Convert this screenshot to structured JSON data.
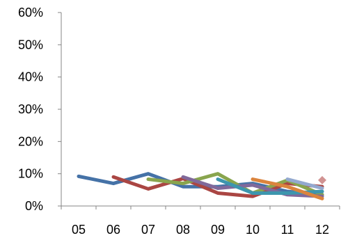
{
  "chart_data": {
    "type": "line",
    "title": "",
    "xlabel": "",
    "ylabel": "",
    "categories": [
      "05",
      "06",
      "07",
      "08",
      "09",
      "10",
      "11",
      "12"
    ],
    "y_tick_labels": [
      "0%",
      "10%",
      "20%",
      "30%",
      "40%",
      "50%",
      "60%"
    ],
    "ylim": [
      0,
      60
    ],
    "grid": false,
    "legend": "none",
    "series": [
      {
        "color": "#4572A7",
        "points": [
          {
            "x": 0,
            "y": 9.2
          },
          {
            "x": 1,
            "y": 7.0
          },
          {
            "x": 2,
            "y": 10.0
          },
          {
            "x": 3,
            "y": 6.0
          },
          {
            "x": 4,
            "y": 6.0
          },
          {
            "x": 5,
            "y": 7.0
          },
          {
            "x": 6,
            "y": 4.5
          },
          {
            "x": 7,
            "y": 3.5
          }
        ]
      },
      {
        "color": "#AA4643",
        "points": [
          {
            "x": 1,
            "y": 9.0
          },
          {
            "x": 2,
            "y": 5.3
          },
          {
            "x": 3,
            "y": 8.5
          },
          {
            "x": 4,
            "y": 4.0
          },
          {
            "x": 5,
            "y": 3.0
          },
          {
            "x": 6,
            "y": 7.0
          },
          {
            "x": 7,
            "y": 6.0
          }
        ]
      },
      {
        "color": "#89A54E",
        "points": [
          {
            "x": 2,
            "y": 8.3
          },
          {
            "x": 3,
            "y": 7.0
          },
          {
            "x": 4,
            "y": 10.0
          },
          {
            "x": 5,
            "y": 4.0
          },
          {
            "x": 6,
            "y": 8.0
          },
          {
            "x": 7,
            "y": 3.5
          }
        ]
      },
      {
        "color": "#80699B",
        "points": [
          {
            "x": 3,
            "y": 9.0
          },
          {
            "x": 4,
            "y": 5.5
          },
          {
            "x": 5,
            "y": 6.5
          },
          {
            "x": 6,
            "y": 3.5
          },
          {
            "x": 7,
            "y": 3.0
          }
        ]
      },
      {
        "color": "#3D96AE",
        "points": [
          {
            "x": 4,
            "y": 8.3
          },
          {
            "x": 5,
            "y": 4.0
          },
          {
            "x": 6,
            "y": 4.0
          },
          {
            "x": 7,
            "y": 4.5
          }
        ]
      },
      {
        "color": "#DB843D",
        "points": [
          {
            "x": 5,
            "y": 8.3
          },
          {
            "x": 6,
            "y": 6.0
          },
          {
            "x": 7,
            "y": 2.3
          }
        ]
      },
      {
        "color": "#93A9CF",
        "points": [
          {
            "x": 6,
            "y": 8.3
          },
          {
            "x": 7,
            "y": 5.5
          }
        ]
      },
      {
        "color": "#D19392",
        "marker": "diamond",
        "points": [
          {
            "x": 7,
            "y": 8.0
          }
        ]
      }
    ]
  }
}
